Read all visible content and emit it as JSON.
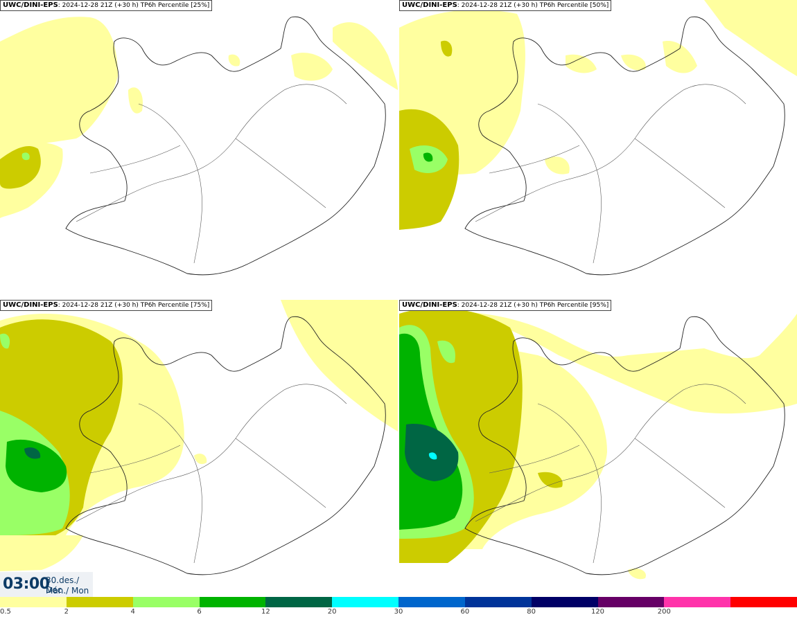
{
  "panels": [
    {
      "model": "UWC/DINI-EPS",
      "info": ": 2024-12-28 21Z (+30 h)",
      "field": "TP6h Percentile [25%]",
      "percentile": 25
    },
    {
      "model": "UWC/DINI-EPS",
      "info": ": 2024-12-28 21Z (+30 h)",
      "field": "TP6h Percentile [50%]",
      "percentile": 50
    },
    {
      "model": "UWC/DINI-EPS",
      "info": ": 2024-12-28 21Z (+30 h)",
      "field": "TP6h Percentile [75%]",
      "percentile": 75
    },
    {
      "model": "UWC/DINI-EPS",
      "info": ": 2024-12-28 21Z (+30 h)",
      "field": "TP6h Percentile [95%]",
      "percentile": 95
    }
  ],
  "time": {
    "clock": "03:00",
    "date": "30.des./ Dec",
    "weekday": "Mán./ Mon"
  },
  "legend": {
    "colors": [
      "#ffff9f",
      "#cccc00",
      "#99ff66",
      "#00b300",
      "#006644",
      "#00ffff",
      "#0066cc",
      "#003399",
      "#000066",
      "#660066",
      "#ff33aa",
      "#ff0000"
    ],
    "ticks": [
      "0.5",
      "2",
      "4",
      "6",
      "12",
      "20",
      "30",
      "60",
      "80",
      "120",
      "200"
    ]
  },
  "colors": {
    "land": "#ffffff",
    "coast": "#222222",
    "roads": "#555555"
  }
}
